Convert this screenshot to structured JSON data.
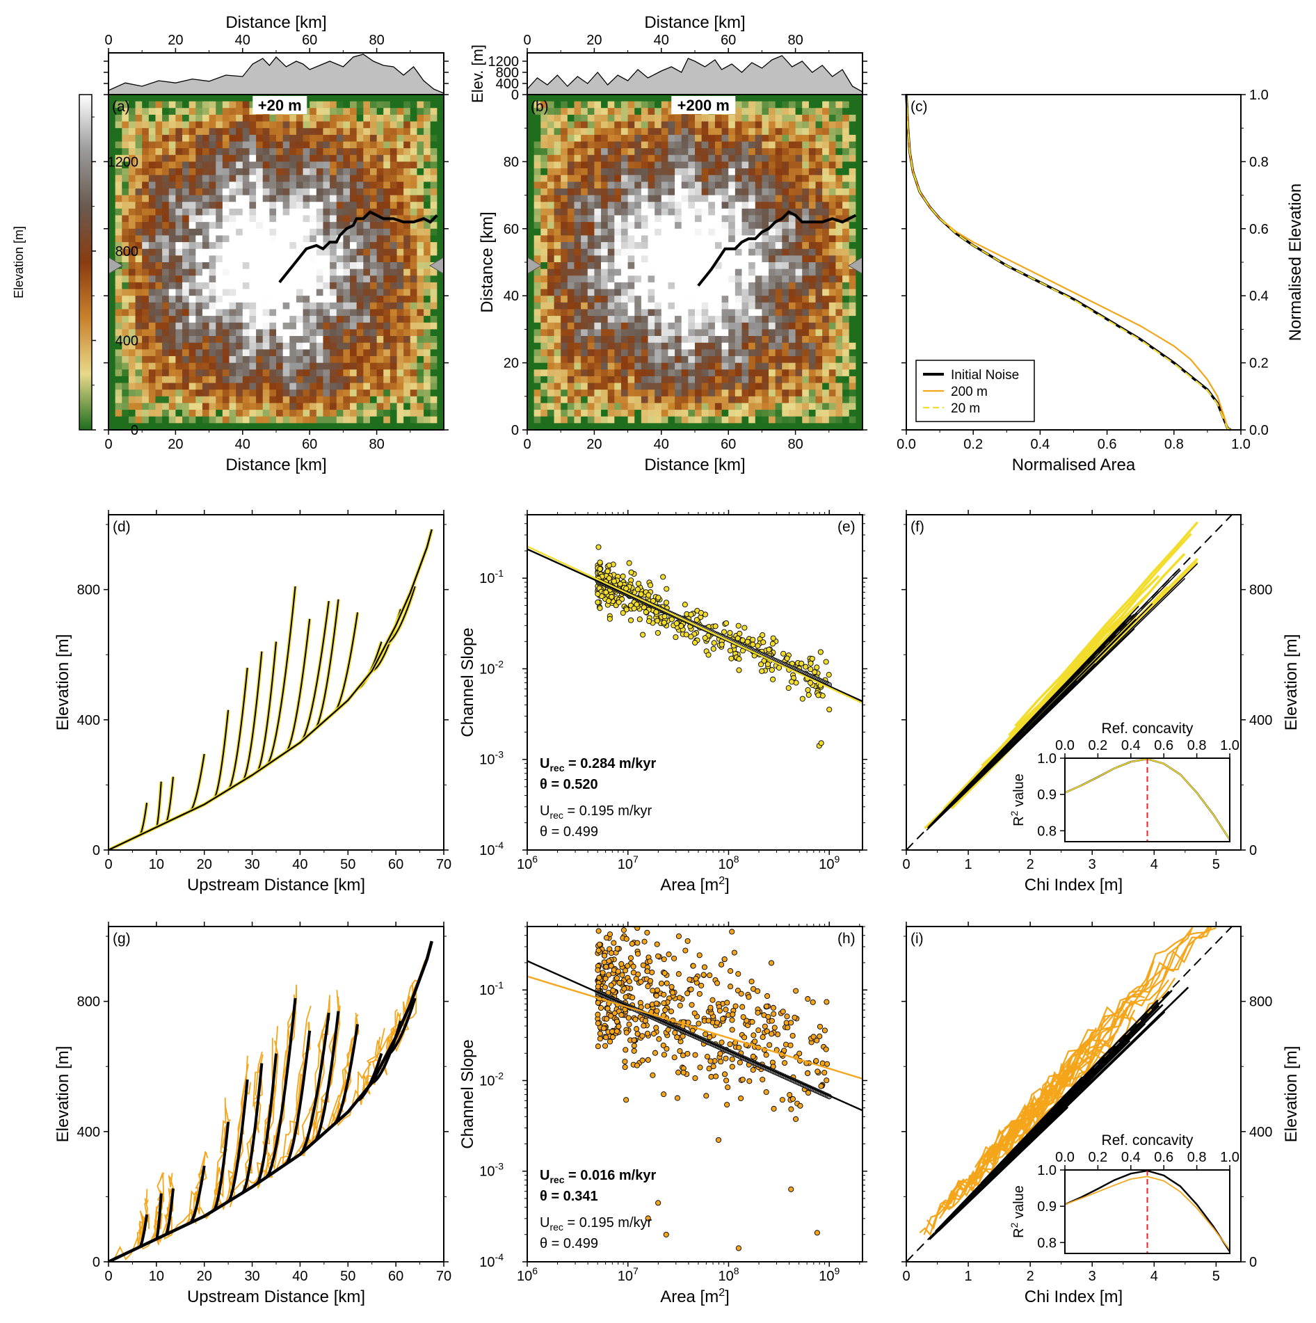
{
  "figure": {
    "panel_letters": [
      "(a)",
      "(b)",
      "(c)",
      "(d)",
      "(e)",
      "(f)",
      "(g)",
      "(h)",
      "(i)"
    ],
    "colors": {
      "initial": "#000000",
      "noise200": "#f5a51a",
      "noise20": "#f2dc2c",
      "noise20_text": "#b59a1e",
      "noise200_text": "#b0813c",
      "concavity_line": "#e8202a",
      "profile_fill": "#c0c0c0",
      "colormap": [
        "#1e6e1e",
        "#e8d98a",
        "#c8822c",
        "#8a3c10",
        "#6a5a50",
        "#9a9a9a",
        "#ffffff"
      ]
    }
  },
  "chart_data": [
    {
      "id": "a",
      "type": "heatmap",
      "title": "",
      "badge": "+20 m",
      "xlabel": "Distance [km]",
      "top_xlabel": "Distance [km]",
      "xlim": [
        0,
        100
      ],
      "ylim": [
        0,
        100
      ],
      "xticks": [
        "0",
        "20",
        "40",
        "60",
        "80"
      ],
      "colorbar": {
        "label": "Elevation [m]",
        "range": [
          0,
          1500
        ],
        "ticks": [
          "0",
          "400",
          "800",
          "1200"
        ]
      },
      "marker_y_km": 49,
      "trunk_channel": [
        [
          51,
          44
        ],
        [
          55,
          49
        ],
        [
          59,
          54
        ],
        [
          62,
          55
        ],
        [
          64,
          54
        ],
        [
          66,
          56
        ],
        [
          68,
          56
        ],
        [
          69,
          58
        ],
        [
          71,
          60
        ],
        [
          73,
          61
        ],
        [
          74,
          63
        ],
        [
          76,
          63
        ],
        [
          78,
          65
        ],
        [
          80,
          64
        ],
        [
          82,
          63
        ],
        [
          85,
          63
        ],
        [
          88,
          62
        ],
        [
          91,
          62
        ],
        [
          94,
          63
        ],
        [
          96,
          62
        ],
        [
          98,
          64
        ]
      ],
      "top_profile_km": [
        0,
        5,
        10,
        15,
        20,
        25,
        30,
        35,
        40,
        43,
        46,
        48,
        50,
        53,
        56,
        58,
        60,
        63,
        66,
        70,
        73,
        76,
        79,
        82,
        85,
        88,
        91,
        94,
        97,
        100
      ],
      "top_profile_m": [
        150,
        420,
        300,
        500,
        420,
        560,
        480,
        700,
        650,
        1100,
        1300,
        1050,
        1350,
        1000,
        1200,
        1100,
        900,
        1050,
        1200,
        1000,
        1350,
        1450,
        1200,
        1050,
        1000,
        700,
        1000,
        500,
        200,
        50
      ]
    },
    {
      "id": "b",
      "type": "heatmap",
      "title": "",
      "badge": "+200 m",
      "xlabel": "Distance [km]",
      "ylabel": "Distance [km]",
      "top_xlabel": "Distance [km]",
      "top_ylabel": "Elev. [m]",
      "top_yticks": [
        "0",
        "400",
        "800",
        "1200"
      ],
      "xlim": [
        0,
        100
      ],
      "ylim": [
        0,
        100
      ],
      "xticks": [
        "0",
        "20",
        "40",
        "60",
        "80"
      ],
      "yticks": [
        "0",
        "20",
        "40",
        "60",
        "80"
      ],
      "marker_y_km": 49,
      "trunk_channel": [
        [
          51,
          43
        ],
        [
          55,
          48
        ],
        [
          59,
          54
        ],
        [
          62,
          54
        ],
        [
          64,
          56
        ],
        [
          66,
          57
        ],
        [
          68,
          57
        ],
        [
          70,
          59
        ],
        [
          72,
          60
        ],
        [
          74,
          62
        ],
        [
          76,
          63
        ],
        [
          78,
          65
        ],
        [
          80,
          64
        ],
        [
          82,
          62
        ],
        [
          85,
          62
        ],
        [
          88,
          62
        ],
        [
          91,
          63
        ],
        [
          94,
          62
        ],
        [
          96,
          63
        ],
        [
          98,
          64
        ]
      ],
      "top_profile_km": [
        0,
        3,
        6,
        9,
        12,
        15,
        18,
        21,
        24,
        27,
        30,
        33,
        36,
        40,
        43,
        46,
        48,
        50,
        53,
        56,
        58,
        61,
        64,
        67,
        70,
        73,
        76,
        79,
        82,
        85,
        88,
        91,
        94,
        97,
        100
      ],
      "top_profile_m": [
        200,
        600,
        350,
        700,
        300,
        650,
        400,
        800,
        350,
        700,
        500,
        900,
        600,
        850,
        1000,
        800,
        1300,
        1200,
        1000,
        1250,
        900,
        1100,
        800,
        1150,
        950,
        1250,
        1400,
        1000,
        1200,
        800,
        1050,
        650,
        900,
        300,
        100
      ]
    },
    {
      "id": "c",
      "type": "line",
      "title": "",
      "xlabel": "Normalised Area",
      "ylabel": "Normalised Elevation",
      "xlim": [
        0,
        1
      ],
      "ylim": [
        0,
        1
      ],
      "xticks": [
        "0.0",
        "0.2",
        "0.4",
        "0.6",
        "0.8",
        "1.0"
      ],
      "yticks": [
        "0.0",
        "0.2",
        "0.4",
        "0.6",
        "0.8",
        "1.0"
      ],
      "legend": [
        "Initial Noise",
        "200 m",
        "20 m"
      ],
      "series": [
        {
          "name": "Initial Noise",
          "x": [
            0,
            0.005,
            0.01,
            0.02,
            0.04,
            0.07,
            0.1,
            0.15,
            0.2,
            0.3,
            0.4,
            0.5,
            0.6,
            0.7,
            0.8,
            0.85,
            0.9,
            0.93,
            0.95,
            0.96,
            0.97
          ],
          "y": [
            1.0,
            0.9,
            0.83,
            0.77,
            0.71,
            0.665,
            0.63,
            0.585,
            0.55,
            0.49,
            0.44,
            0.39,
            0.33,
            0.27,
            0.2,
            0.16,
            0.12,
            0.08,
            0.03,
            0.005,
            0.0
          ]
        },
        {
          "name": "200 m",
          "x": [
            0,
            0.005,
            0.01,
            0.02,
            0.04,
            0.07,
            0.1,
            0.15,
            0.2,
            0.3,
            0.4,
            0.5,
            0.6,
            0.7,
            0.8,
            0.85,
            0.9,
            0.93,
            0.95,
            0.96,
            0.97
          ],
          "y": [
            1.0,
            0.9,
            0.83,
            0.77,
            0.71,
            0.665,
            0.63,
            0.59,
            0.56,
            0.51,
            0.46,
            0.41,
            0.36,
            0.31,
            0.25,
            0.21,
            0.15,
            0.1,
            0.04,
            0.005,
            0.0
          ]
        },
        {
          "name": "20 m",
          "x": [
            0,
            0.005,
            0.01,
            0.02,
            0.04,
            0.07,
            0.1,
            0.15,
            0.2,
            0.3,
            0.4,
            0.5,
            0.6,
            0.7,
            0.8,
            0.85,
            0.9,
            0.93,
            0.95,
            0.96,
            0.97
          ],
          "y": [
            1.0,
            0.9,
            0.83,
            0.77,
            0.71,
            0.665,
            0.63,
            0.585,
            0.55,
            0.49,
            0.44,
            0.388,
            0.328,
            0.268,
            0.198,
            0.158,
            0.118,
            0.078,
            0.028,
            0.004,
            0.0
          ]
        }
      ]
    },
    {
      "id": "d",
      "type": "line",
      "title": "",
      "xlabel": "Upstream Distance [km]",
      "ylabel": "Elevation [m]",
      "xlim": [
        0,
        70
      ],
      "ylim": [
        0,
        1030
      ],
      "xticks": [
        "0",
        "10",
        "20",
        "30",
        "40",
        "50",
        "60",
        "70"
      ],
      "yticks": [
        "0",
        "400",
        "800"
      ],
      "trunk": {
        "x": [
          0,
          10,
          20,
          30,
          40,
          50,
          55,
          60,
          63,
          65,
          66.5,
          67.5
        ],
        "y": [
          0,
          70,
          140,
          230,
          330,
          460,
          550,
          690,
          790,
          870,
          930,
          985
        ]
      },
      "tributaries": [
        {
          "x0": 6.5,
          "x1": 8,
          "y_top": 145
        },
        {
          "x0": 10,
          "x1": 11,
          "y_top": 210
        },
        {
          "x0": 12,
          "x1": 13.5,
          "y_top": 225
        },
        {
          "x0": 17,
          "x1": 20,
          "y_top": 295
        },
        {
          "x0": 22,
          "x1": 25,
          "y_top": 430
        },
        {
          "x0": 25,
          "x1": 29,
          "y_top": 560
        },
        {
          "x0": 28,
          "x1": 32,
          "y_top": 610
        },
        {
          "x0": 31,
          "x1": 35,
          "y_top": 640
        },
        {
          "x0": 33,
          "x1": 39,
          "y_top": 810
        },
        {
          "x0": 37,
          "x1": 42,
          "y_top": 710
        },
        {
          "x0": 40,
          "x1": 46,
          "y_top": 765
        },
        {
          "x0": 43,
          "x1": 48,
          "y_top": 770
        },
        {
          "x0": 47,
          "x1": 52,
          "y_top": 730
        },
        {
          "x0": 52,
          "x1": 57,
          "y_top": 640
        },
        {
          "x0": 55,
          "x1": 61,
          "y_top": 740
        },
        {
          "x0": 58,
          "x1": 64,
          "y_top": 810
        }
      ],
      "series": [
        {
          "name": "Initial Noise",
          "color_key": "initial"
        },
        {
          "name": "20 m",
          "color_key": "noise20"
        }
      ]
    },
    {
      "id": "e",
      "type": "scatter",
      "title": "",
      "xlabel": "Area [m2]",
      "ylabel": "Channel Slope",
      "xlim_log10": [
        6,
        9.33
      ],
      "ylim_log10": [
        -4,
        -0.3
      ],
      "xticks": [
        "10^6",
        "10^7",
        "10^8",
        "10^9"
      ],
      "yticks": [
        "10^-4",
        "10^-3",
        "10^-2",
        "10^-1"
      ],
      "annotations": {
        "noisy_U": "U_rec = 0.284 m/kyr",
        "noisy_theta": "θ = 0.520",
        "initial_U": "U_rec = 0.195 m/kyr",
        "initial_theta": "θ = 0.499"
      },
      "fits": [
        {
          "name": "Initial Noise",
          "log10A": [
            6,
            9.33
          ],
          "log10S": [
            -0.68,
            -2.36
          ]
        },
        {
          "name": "20 m",
          "log10A": [
            6,
            9.33
          ],
          "log10S": [
            -0.65,
            -2.38
          ]
        }
      ],
      "scatter": {
        "logA_range": [
          6.7,
          9.0
        ],
        "logS_intercept": -0.68,
        "slope": -0.499,
        "scatter_sd": 0.12,
        "n": 420,
        "outliers": [
          [
            7.85,
            -1.78
          ],
          [
            8.9,
            -2.85
          ],
          [
            8.92,
            -2.82
          ],
          [
            9.0,
            -2.45
          ]
        ]
      }
    },
    {
      "id": "f",
      "type": "line",
      "title": "",
      "xlabel": "Chi Index [m]",
      "ylabel": "Elevation [m]",
      "xlim": [
        0,
        5.4
      ],
      "ylim": [
        0,
        1030
      ],
      "xticks": [
        "0",
        "1",
        "2",
        "3",
        "4",
        "5"
      ],
      "yticks": [
        "0",
        "400",
        "800"
      ],
      "trunk_slope": 196,
      "chi_max": 4.7,
      "n_tributaries": 18,
      "inset": {
        "title": "Ref. concavity",
        "ylabel": "R2 value",
        "xlim": [
          0,
          1
        ],
        "ylim": [
          0.77,
          1.0
        ],
        "xticks": [
          "0.0",
          "0.2",
          "0.4",
          "0.6",
          "0.8",
          "1.0"
        ],
        "yticks": [
          "0.8",
          "0.9",
          "1.0"
        ],
        "best_concavity": 0.5,
        "series": [
          {
            "name": "Initial Noise",
            "x": [
              0,
              0.1,
              0.2,
              0.3,
              0.4,
              0.5,
              0.6,
              0.7,
              0.8,
              0.9,
              1.0
            ],
            "y": [
              0.905,
              0.925,
              0.948,
              0.972,
              0.99,
              0.998,
              0.985,
              0.955,
              0.905,
              0.845,
              0.775
            ]
          },
          {
            "name": "20 m",
            "x": [
              0,
              0.1,
              0.2,
              0.3,
              0.4,
              0.5,
              0.6,
              0.7,
              0.8,
              0.9,
              1.0
            ],
            "y": [
              0.905,
              0.925,
              0.948,
              0.972,
              0.99,
              0.998,
              0.985,
              0.955,
              0.905,
              0.845,
              0.775
            ]
          }
        ]
      }
    },
    {
      "id": "g",
      "type": "line",
      "title": "",
      "xlabel": "Upstream Distance [km]",
      "ylabel": "Elevation [m]",
      "xlim": [
        0,
        70
      ],
      "ylim": [
        0,
        1030
      ],
      "xticks": [
        "0",
        "10",
        "20",
        "30",
        "40",
        "50",
        "60",
        "70"
      ],
      "yticks": [
        "0",
        "400",
        "800"
      ],
      "series": [
        {
          "name": "Initial Noise",
          "color_key": "initial"
        },
        {
          "name": "200 m",
          "color_key": "noise200"
        }
      ]
    },
    {
      "id": "h",
      "type": "scatter",
      "title": "",
      "xlabel": "Area [m2]",
      "ylabel": "Channel Slope",
      "xlim_log10": [
        6,
        9.33
      ],
      "ylim_log10": [
        -4,
        -0.3
      ],
      "xticks": [
        "10^6",
        "10^7",
        "10^8",
        "10^9"
      ],
      "yticks": [
        "10^-4",
        "10^-3",
        "10^-2",
        "10^-1"
      ],
      "annotations": {
        "noisy_U": "U_rec = 0.016 m/kyr",
        "noisy_theta": "θ = 0.341",
        "initial_U": "U_rec = 0.195 m/kyr",
        "initial_theta": "θ = 0.499"
      },
      "fits": [
        {
          "name": "Initial Noise",
          "log10A": [
            6,
            9.33
          ],
          "log10S": [
            -0.68,
            -2.33
          ]
        },
        {
          "name": "200 m",
          "log10A": [
            6,
            9.33
          ],
          "log10S": [
            -0.85,
            -1.98
          ]
        }
      ],
      "scatter": {
        "logA_range": [
          6.7,
          9.0
        ],
        "logS_intercept": -0.75,
        "slope": -0.341,
        "scatter_sd": 0.4,
        "n": 560,
        "outliers": [
          [
            7.2,
            -3.52
          ],
          [
            7.38,
            -3.7
          ],
          [
            8.1,
            -3.85
          ],
          [
            8.62,
            -3.2
          ],
          [
            8.88,
            -3.68
          ],
          [
            7.3,
            -3.35
          ]
        ]
      }
    },
    {
      "id": "i",
      "type": "line",
      "title": "",
      "xlabel": "Chi Index [m]",
      "ylabel": "Elevation [m]",
      "xlim": [
        0,
        5.4
      ],
      "ylim": [
        0,
        1030
      ],
      "xticks": [
        "0",
        "1",
        "2",
        "3",
        "4",
        "5"
      ],
      "yticks": [
        "0",
        "400",
        "800"
      ],
      "trunk_slope": 196,
      "chi_max": 5.0,
      "n_tributaries": 26,
      "inset": {
        "title": "Ref. concavity",
        "ylabel": "R2 value",
        "xlim": [
          0,
          1
        ],
        "ylim": [
          0.77,
          1.0
        ],
        "xticks": [
          "0.0",
          "0.2",
          "0.4",
          "0.6",
          "0.8",
          "1.0"
        ],
        "yticks": [
          "0.8",
          "0.9",
          "1.0"
        ],
        "best_concavity": 0.5,
        "series": [
          {
            "name": "Initial Noise",
            "x": [
              0,
              0.1,
              0.2,
              0.3,
              0.4,
              0.5,
              0.6,
              0.7,
              0.8,
              0.9,
              1.0
            ],
            "y": [
              0.905,
              0.925,
              0.948,
              0.972,
              0.99,
              0.998,
              0.985,
              0.955,
              0.905,
              0.845,
              0.775
            ]
          },
          {
            "name": "200 m",
            "x": [
              0,
              0.1,
              0.2,
              0.3,
              0.4,
              0.5,
              0.6,
              0.7,
              0.8,
              0.9,
              1.0
            ],
            "y": [
              0.905,
              0.922,
              0.94,
              0.958,
              0.975,
              0.982,
              0.97,
              0.94,
              0.895,
              0.84,
              0.78
            ]
          }
        ]
      }
    }
  ]
}
